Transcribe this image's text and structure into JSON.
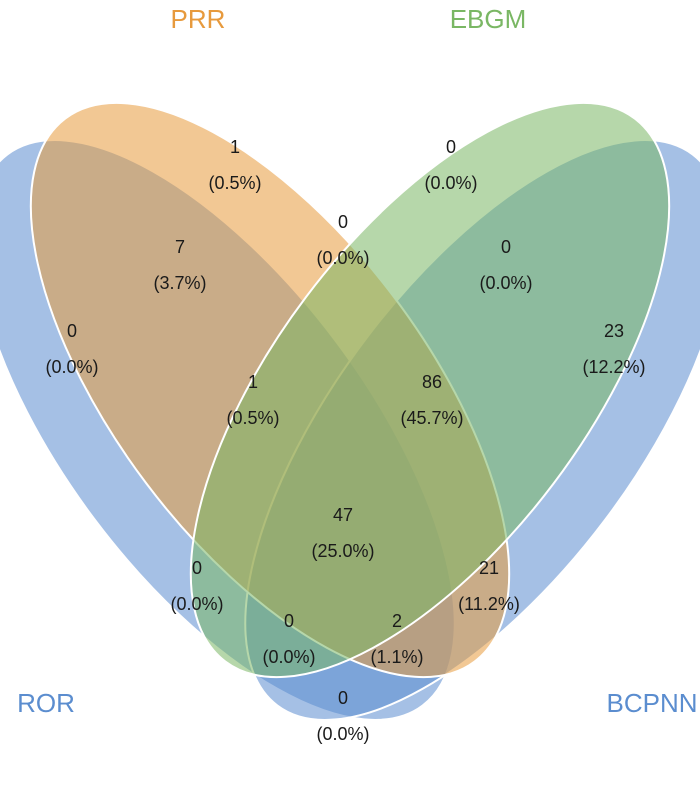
{
  "sets": {
    "ror": {
      "label": "ROR",
      "color": "#5B8DCF"
    },
    "prr": {
      "label": "PRR",
      "color": "#E79A3D"
    },
    "ebgm": {
      "label": "EBGM",
      "color": "#7AB764"
    },
    "bcpnn": {
      "label": "BCPNN",
      "color": "#5B8DCF"
    }
  },
  "regions": {
    "ror_only": {
      "count": "0",
      "pct": "(0.0%)"
    },
    "prr_only": {
      "count": "1",
      "pct": "(0.5%)"
    },
    "ebgm_only": {
      "count": "0",
      "pct": "(0.0%)"
    },
    "bcpnn_only": {
      "count": "23",
      "pct": "(12.2%)"
    },
    "ror_prr": {
      "count": "7",
      "pct": "(3.7%)"
    },
    "prr_ebgm": {
      "count": "0",
      "pct": "(0.0%)"
    },
    "ebgm_bcpnn": {
      "count": "0",
      "pct": "(0.0%)"
    },
    "ror_prr_ebgm": {
      "count": "1",
      "pct": "(0.5%)"
    },
    "prr_ebgm_bcpnn": {
      "count": "86",
      "pct": "(45.7%)"
    },
    "all_four": {
      "count": "47",
      "pct": "(25.0%)"
    },
    "ror_ebgm": {
      "count": "0",
      "pct": "(0.0%)"
    },
    "prr_bcpnn": {
      "count": "21",
      "pct": "(11.2%)"
    },
    "ror_ebgm_bcpnn": {
      "count": "0",
      "pct": "(0.0%)"
    },
    "ror_prr_bcpnn": {
      "count": "2",
      "pct": "(1.1%)"
    },
    "ror_bcpnn": {
      "count": "0",
      "pct": "(0.0%)"
    }
  }
}
